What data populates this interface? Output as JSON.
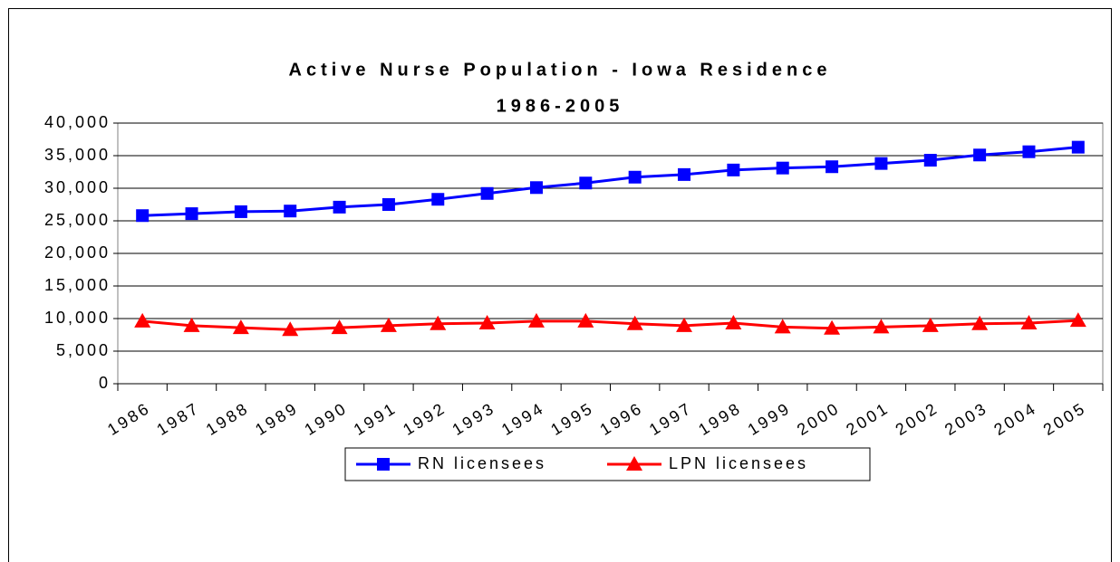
{
  "chart_data": {
    "type": "line",
    "title": "Active Nurse Population - Iowa Residence",
    "subtitle": "1986-2005",
    "categories": [
      "1986",
      "1987",
      "1988",
      "1989",
      "1990",
      "1991",
      "1992",
      "1993",
      "1994",
      "1995",
      "1996",
      "1997",
      "1998",
      "1999",
      "2000",
      "2001",
      "2002",
      "2003",
      "2004",
      "2005"
    ],
    "series": [
      {
        "name": "RN licensees",
        "color": "#0000ff",
        "marker": "square",
        "values": [
          25800,
          26100,
          26400,
          26500,
          27100,
          27500,
          28300,
          29200,
          30100,
          30800,
          31700,
          32100,
          32800,
          33100,
          33300,
          33800,
          34300,
          35100,
          35600,
          36300
        ]
      },
      {
        "name": "LPN licensees",
        "color": "#ff0000",
        "marker": "triangle",
        "values": [
          9600,
          8900,
          8600,
          8300,
          8600,
          8900,
          9200,
          9300,
          9600,
          9600,
          9200,
          8900,
          9300,
          8700,
          8500,
          8700,
          8900,
          9200,
          9300,
          9700
        ]
      }
    ],
    "ylim": [
      0,
      40000
    ],
    "yticks": [
      0,
      {
        "value": 5000,
        "label": "5,000"
      },
      {
        "value": 10000,
        "label": "10,000"
      },
      {
        "value": 15000,
        "label": "15,000"
      },
      {
        "value": 20000,
        "label": "20,000"
      },
      {
        "value": 25000,
        "label": "25,000"
      },
      {
        "value": 30000,
        "label": "30,000"
      },
      {
        "value": 35000,
        "label": "35,000"
      },
      {
        "value": 40000,
        "label": "40,000"
      }
    ],
    "grid": true,
    "legend": "bottom"
  }
}
